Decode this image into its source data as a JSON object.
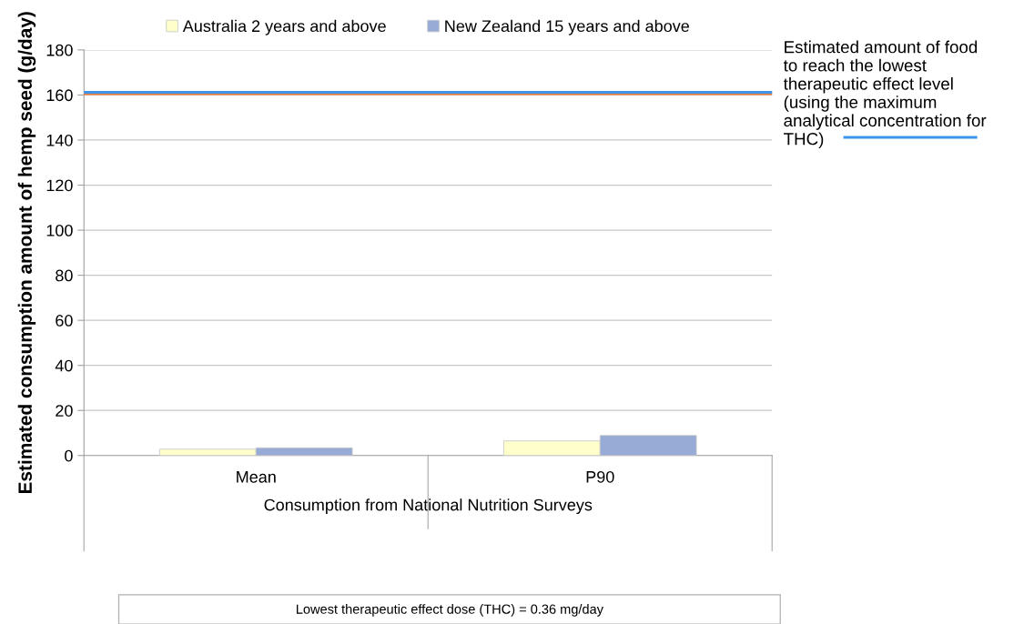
{
  "chart_data": {
    "type": "bar",
    "ylabel": "Estimated consumption amount of hemp seed (g/day)",
    "xlabel": "Consumption from National Nutrition Surveys",
    "categories": [
      "Mean",
      "P90"
    ],
    "series": [
      {
        "name": "Australia 2 years and above",
        "color": "#ffffcc",
        "values": [
          2.8,
          6.5
        ]
      },
      {
        "name": "New Zealand 15 years and above",
        "color": "#97abd6",
        "values": [
          3.4,
          8.9
        ]
      }
    ],
    "ylim": [
      0,
      180
    ],
    "yticks": [
      0,
      20,
      40,
      60,
      80,
      100,
      120,
      140,
      160,
      180
    ],
    "grid": "y",
    "legend": "top",
    "ref_lines": [
      {
        "axis": "y",
        "value": 160.6,
        "color": "#ed7d31"
      },
      {
        "axis": "y",
        "value": 161.2,
        "color": "#3c95e8",
        "label": "Estimated amount of food\nto reach the lowest\ntherapeutic effect level\n(using the maximum\nanalytical concentration for\nTHC)"
      }
    ],
    "annotations": [
      "Lowest therapeutic effect dose (THC) = 0.36 mg/day"
    ]
  }
}
